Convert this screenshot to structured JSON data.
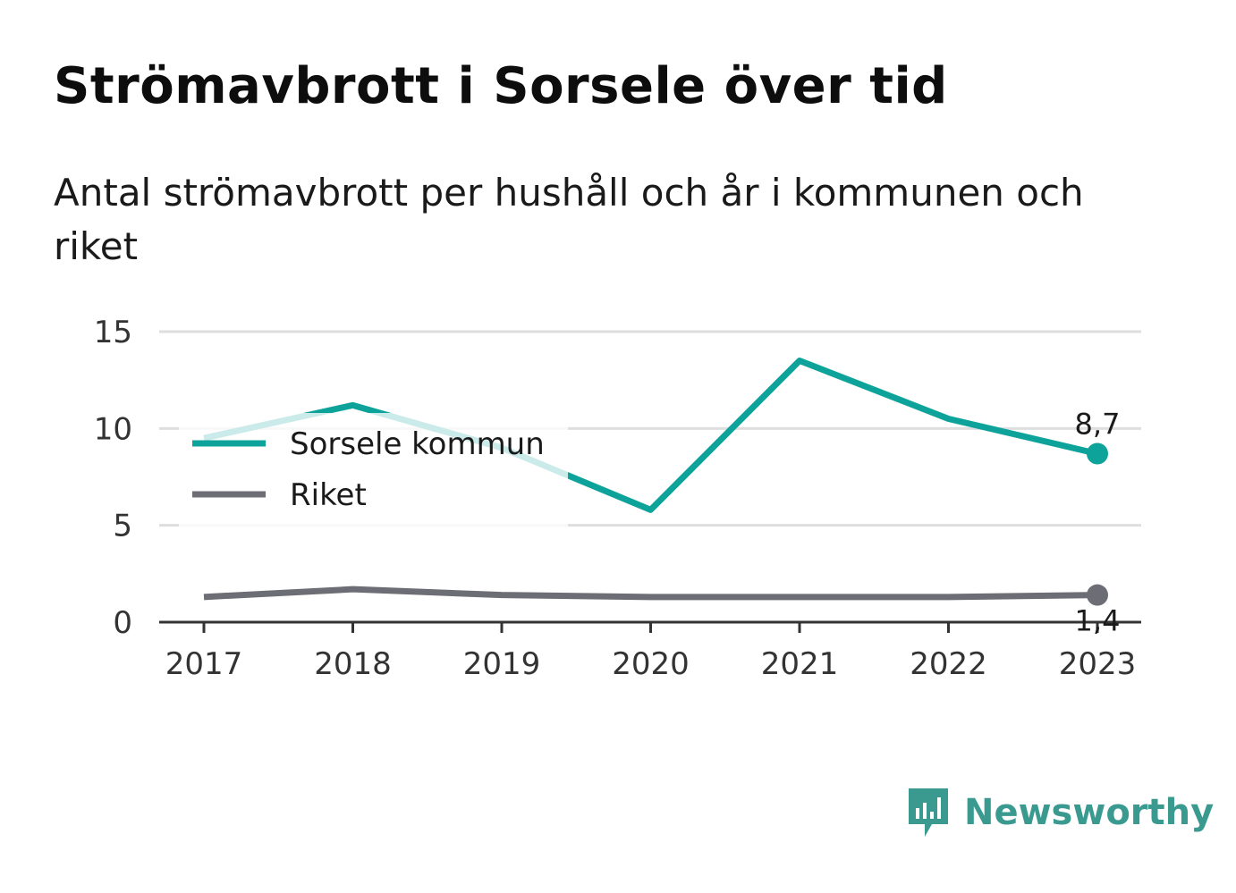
{
  "header": {
    "title": "Strömavbrott i Sorsele över tid",
    "subtitle": "Antal strömavbrott per hushåll och år i kommunen och riket"
  },
  "brand": {
    "name": "Newsworthy",
    "icon": "newsworthy-logo-icon",
    "color": "#3a9a90"
  },
  "chart_data": {
    "type": "line",
    "title": "Strömavbrott i Sorsele över tid",
    "subtitle": "Antal strömavbrott per hushåll och år i kommunen och riket",
    "x": [
      "2017",
      "2018",
      "2019",
      "2020",
      "2021",
      "2022",
      "2023"
    ],
    "ylim": [
      0,
      15
    ],
    "yticks": [
      "0",
      "5",
      "10",
      "15"
    ],
    "grid": true,
    "legend_position": "upper-left",
    "series": [
      {
        "name": "Sorsele kommun",
        "color": "#0ea39a",
        "values": [
          9.5,
          11.2,
          9.0,
          5.8,
          13.5,
          10.5,
          8.7
        ],
        "end_label": "8,7"
      },
      {
        "name": "Riket",
        "color": "#6d6e75",
        "values": [
          1.3,
          1.7,
          1.4,
          1.3,
          1.3,
          1.3,
          1.4
        ],
        "end_label": "1,4"
      }
    ]
  }
}
